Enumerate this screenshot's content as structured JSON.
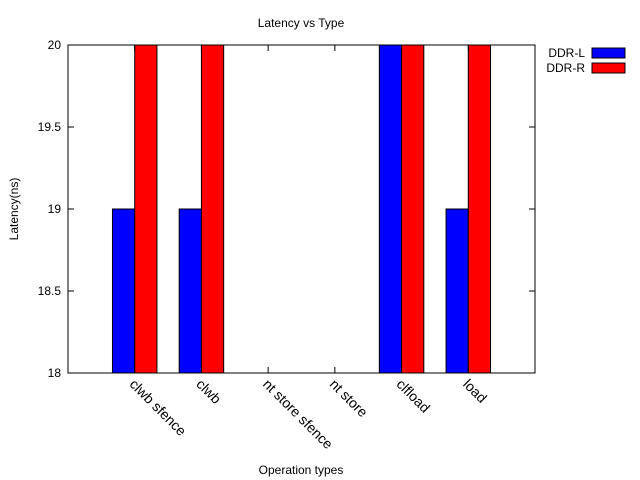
{
  "chart_data": {
    "type": "bar",
    "title": "Latency vs Type",
    "xlabel": "Operation types",
    "ylabel": "Latency(ns)",
    "ylim": [
      18,
      20
    ],
    "yticks": [
      "18",
      "18.5",
      "19",
      "19.5",
      "20"
    ],
    "ytick_values": [
      18,
      18.5,
      19,
      19.5,
      20
    ],
    "categories": [
      "clwb sfence",
      "clwb",
      "nt store sfence",
      "nt store",
      "clfload",
      "load"
    ],
    "series": [
      {
        "name": "DDR-L",
        "color": "#0000ff",
        "values": [
          19,
          19,
          null,
          null,
          20,
          19
        ]
      },
      {
        "name": "DDR-R",
        "color": "#ff0000",
        "values": [
          20,
          20,
          null,
          null,
          20,
          20
        ]
      }
    ],
    "legend_position": "top-right-outside",
    "grid": false
  }
}
